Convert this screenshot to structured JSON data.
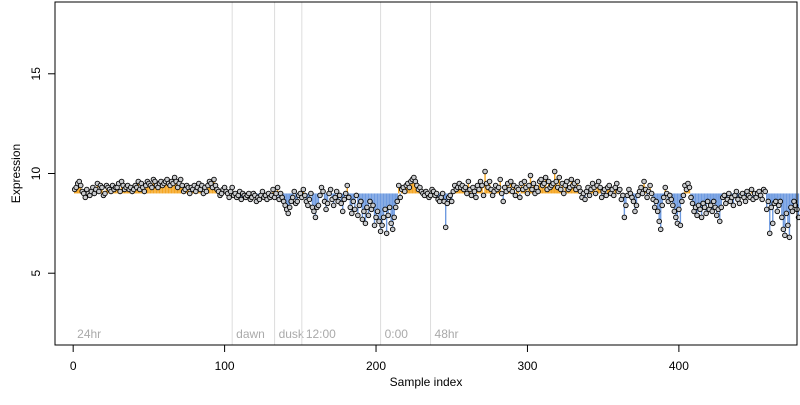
{
  "chart_data": {
    "type": "scatter",
    "title": "",
    "xlabel": "Sample index",
    "ylabel": "Expression",
    "xlim": [
      -12,
      478
    ],
    "ylim": [
      1.4,
      18.6
    ],
    "x_ticks": [
      0,
      100,
      200,
      300,
      400
    ],
    "y_ticks": [
      5,
      10,
      15
    ],
    "baseline": 9.0,
    "grid": false,
    "legend": "none",
    "markers": [
      {
        "label": "24hr",
        "x": 0
      },
      {
        "label": "dawn",
        "x": 105
      },
      {
        "label": "dusk",
        "x": 133
      },
      {
        "label": "12:00",
        "x": 151
      },
      {
        "label": "0:00",
        "x": 203
      },
      {
        "label": "48hr",
        "x": 236
      }
    ],
    "colors": {
      "above": "#f5a623",
      "below": "#6f9be0",
      "marker_line": "#dddddd",
      "marker_text": "#aaaaaa",
      "point_fill": "#c9cbce",
      "point_stroke": "#000000",
      "axis": "#000000"
    },
    "series": [
      {
        "x_start": 1,
        "values": [
          9.2,
          9.3,
          9.5,
          9.6,
          9.4,
          9.1,
          9.0,
          8.8,
          9.2,
          9.0,
          8.9,
          9.1,
          9.3,
          9.0,
          9.2,
          9.5,
          9.1,
          9.4,
          9.3,
          8.9,
          9.0,
          9.4,
          9.3,
          9.2,
          9.1,
          9.4,
          9.2,
          9.3,
          9.3,
          9.5,
          9.1,
          9.6,
          9.4,
          9.2,
          9.3,
          9.4,
          9.2,
          9.3,
          9.1,
          9.2,
          9.4,
          9.3,
          9.6,
          9.2,
          9.5,
          9.3,
          9.1,
          9.4,
          9.6,
          9.5,
          9.4,
          9.3,
          9.7,
          9.6,
          9.4,
          9.3,
          9.5,
          9.6,
          9.4,
          9.5,
          9.6,
          9.7,
          9.5,
          9.4,
          9.6,
          9.5,
          9.8,
          9.6,
          9.3,
          9.5,
          9.7,
          9.4,
          9.1,
          9.2,
          9.4,
          9.3,
          9.0,
          9.3,
          9.2,
          9.4,
          9.1,
          9.3,
          9.5,
          9.2,
          9.4,
          9.0,
          9.3,
          9.1,
          9.4,
          9.6,
          9.5,
          9.3,
          9.7,
          9.4,
          9.2,
          9.1,
          8.9,
          9.0,
          9.2,
          9.3,
          9.1,
          9.0,
          8.8,
          9.1,
          9.3,
          8.9,
          9.0,
          8.8,
          8.9,
          9.1,
          8.7,
          9.0,
          8.9,
          8.8,
          8.9,
          9.0,
          8.7,
          8.8,
          9.0,
          8.9,
          8.6,
          8.8,
          8.7,
          8.9,
          9.1,
          8.8,
          8.9,
          8.7,
          9.0,
          8.8,
          8.9,
          9.2,
          8.8,
          9.0,
          9.3,
          8.7,
          9.0,
          8.8,
          8.6,
          8.4,
          8.2,
          8.0,
          8.3,
          8.6,
          8.8,
          9.1,
          8.5,
          8.6,
          8.9,
          9.0,
          8.8,
          9.2,
          8.9,
          8.6,
          8.4,
          8.7,
          9.0,
          8.3,
          8.1,
          7.8,
          8.3,
          8.4,
          8.9,
          9.3,
          9.1,
          8.6,
          8.2,
          8.5,
          9.0,
          9.2,
          8.7,
          8.4,
          8.8,
          9.1,
          8.6,
          8.9,
          8.5,
          8.1,
          8.7,
          9.0,
          9.4,
          8.8,
          8.3,
          8.0,
          8.6,
          8.2,
          8.9,
          7.9,
          8.4,
          8.6,
          7.7,
          8.1,
          7.5,
          8.3,
          7.9,
          8.6,
          8.2,
          8.4,
          7.4,
          7.8,
          8.1,
          7.6,
          7.1,
          7.4,
          7.8,
          8.2,
          7.0,
          7.9,
          8.3,
          7.5,
          7.2,
          7.8,
          8.3,
          8.6,
          9.4,
          8.8,
          9.2,
          9.3,
          9.1,
          9.4,
          9.5,
          9.3,
          9.6,
          9.7,
          9.8,
          9.6,
          9.4,
          9.2,
          9.3,
          9.1,
          9.0,
          8.9,
          9.1,
          9.0,
          8.8,
          8.9,
          9.2,
          9.1,
          8.9,
          9.0,
          8.7,
          8.6,
          8.8,
          9.0,
          8.6,
          7.3,
          8.5,
          8.8,
          8.9,
          8.6,
          9.1,
          9.4,
          9.2,
          9.3,
          9.5,
          9.3,
          9.4,
          9.2,
          9.3,
          9.0,
          9.6,
          9.2,
          8.9,
          9.3,
          9.1,
          8.8,
          9.4,
          9.2,
          9.6,
          9.4,
          8.9,
          10.1,
          9.5,
          9.3,
          9.6,
          9.2,
          8.9,
          9.1,
          9.4,
          9.2,
          9.3,
          9.7,
          9.0,
          8.6,
          9.3,
          9.1,
          9.5,
          9.2,
          9.6,
          9.1,
          9.4,
          8.9,
          9.3,
          9.2,
          8.8,
          9.5,
          9.2,
          9.6,
          9.3,
          9.0,
          9.4,
          9.9,
          9.2,
          9.5,
          9.0,
          9.3,
          9.1,
          9.6,
          9.7,
          9.4,
          9.5,
          9.8,
          9.2,
          9.6,
          9.3,
          9.4,
          9.5,
          10.1,
          9.6,
          9.3,
          9.8,
          9.2,
          9.5,
          9.0,
          9.4,
          9.6,
          9.2,
          9.3,
          9.7,
          9.4,
          9.5,
          9.2,
          9.6,
          9.3,
          9.1,
          8.8,
          9.0,
          8.7,
          9.1,
          9.3,
          8.9,
          9.2,
          9.5,
          9.3,
          9.0,
          9.4,
          9.6,
          9.3,
          8.8,
          9.1,
          9.2,
          8.9,
          9.3,
          9.4,
          9.0,
          9.2,
          8.9,
          9.3,
          9.5,
          9.1,
          9.2,
          8.7,
          8.9,
          7.8,
          8.4,
          8.9,
          9.2,
          9.0,
          8.8,
          8.6,
          8.1,
          8.4,
          8.9,
          9.1,
          9.3,
          9.0,
          9.6,
          9.2,
          8.8,
          9.1,
          9.4,
          9.0,
          8.7,
          8.3,
          8.6,
          8.1,
          7.6,
          7.2,
          8.4,
          8.8,
          9.3,
          9.0,
          8.6,
          8.9,
          8.7,
          8.4,
          8.1,
          7.8,
          7.5,
          8.2,
          7.4,
          8.6,
          8.9,
          9.4,
          9.2,
          9.5,
          9.3,
          8.8,
          8.5,
          8.1,
          8.3,
          7.9,
          8.4,
          8.2,
          7.8,
          8.5,
          8.3,
          8.0,
          8.6,
          8.2,
          8.4,
          8.1,
          8.6,
          8.3,
          7.9,
          8.2,
          7.6,
          8.3,
          8.8,
          8.9,
          8.5,
          8.7,
          9.0,
          8.6,
          8.8,
          8.4,
          8.9,
          9.1,
          8.7,
          8.5,
          8.9,
          9.0,
          8.8,
          8.6,
          9.1,
          8.9,
          8.8,
          9.2,
          8.7,
          9.0,
          8.8,
          9.0,
          9.1,
          8.9,
          8.7,
          9.2,
          9.1,
          8.2,
          8.6,
          7.0,
          8.3,
          7.5,
          8.5,
          8.6,
          8.1,
          8.4,
          8.6,
          7.8,
          7.2,
          6.9,
          8.0,
          7.4,
          6.8,
          8.3,
          8.1,
          8.6,
          8.4,
          8.2,
          7.8
        ]
      }
    ]
  }
}
